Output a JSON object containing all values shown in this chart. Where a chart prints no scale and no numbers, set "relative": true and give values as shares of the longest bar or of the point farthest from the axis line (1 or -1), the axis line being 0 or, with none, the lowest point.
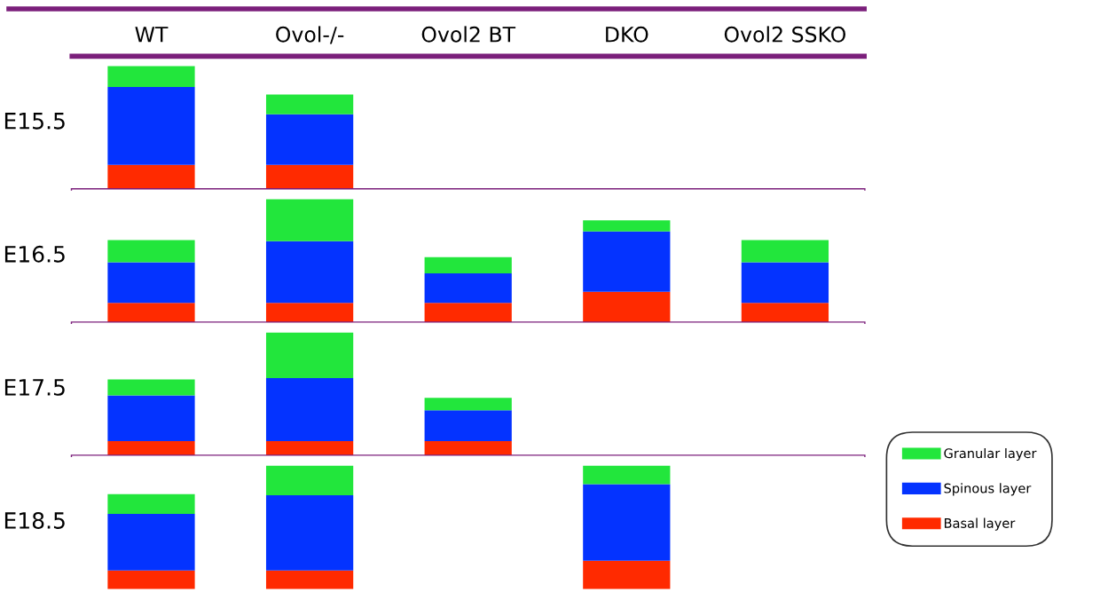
{
  "chart_data": [
    {
      "type": "bar",
      "stacked": true,
      "relative": true,
      "ylabel": "E15.5",
      "tick_labels": "x",
      "categories": [
        "WT",
        "Ovol-/-",
        "Ovol2 BT",
        "DKO",
        "Ovol2 SSKO"
      ],
      "series": [
        {
          "color": "#ff2a00",
          "values": [
            0.2,
            0.2,
            null,
            null,
            null
          ]
        },
        {
          "color": "#0433ff",
          "values": [
            0.63,
            0.41,
            null,
            null,
            null
          ]
        },
        {
          "color": "#22e63c",
          "values": [
            0.17,
            0.16,
            null,
            null,
            null
          ]
        }
      ]
    },
    {
      "type": "bar",
      "stacked": true,
      "relative": true,
      "ylabel": "E16.5",
      "tick_labels": false,
      "categories": [
        null,
        null,
        null,
        null,
        null
      ],
      "series": [
        {
          "color": "#ff2a00",
          "values": [
            0.16,
            0.16,
            0.16,
            0.25,
            0.16
          ]
        },
        {
          "color": "#0433ff",
          "values": [
            0.33,
            0.5,
            0.24,
            0.49,
            0.33
          ]
        },
        {
          "color": "#22e63c",
          "values": [
            0.18,
            0.34,
            0.13,
            0.09,
            0.18
          ]
        }
      ]
    },
    {
      "type": "bar",
      "stacked": true,
      "relative": true,
      "ylabel": "E17.5",
      "tick_labels": false,
      "categories": [
        null,
        null,
        null,
        null,
        null
      ],
      "series": [
        {
          "color": "#ff2a00",
          "values": [
            0.12,
            0.12,
            0.12,
            null,
            null
          ]
        },
        {
          "color": "#0433ff",
          "values": [
            0.37,
            0.51,
            0.25,
            null,
            null
          ]
        },
        {
          "color": "#22e63c",
          "values": [
            0.13,
            0.37,
            0.1,
            null,
            null
          ]
        }
      ]
    },
    {
      "type": "bar",
      "stacked": true,
      "relative": true,
      "ylabel": "E18.5",
      "tick_labels": false,
      "legend": "right",
      "categories": [
        null,
        null,
        null,
        null,
        null
      ],
      "series": [
        {
          "name": "Basal layer",
          "color": "#ff2a00",
          "values": [
            0.15,
            0.15,
            null,
            0.23,
            null
          ]
        },
        {
          "name": "Spinous layer",
          "color": "#0433ff",
          "values": [
            0.46,
            0.61,
            null,
            0.62,
            null
          ]
        },
        {
          "name": "Granular layer",
          "color": "#22e63c",
          "values": [
            0.16,
            0.24,
            null,
            0.15,
            null
          ]
        }
      ]
    }
  ]
}
